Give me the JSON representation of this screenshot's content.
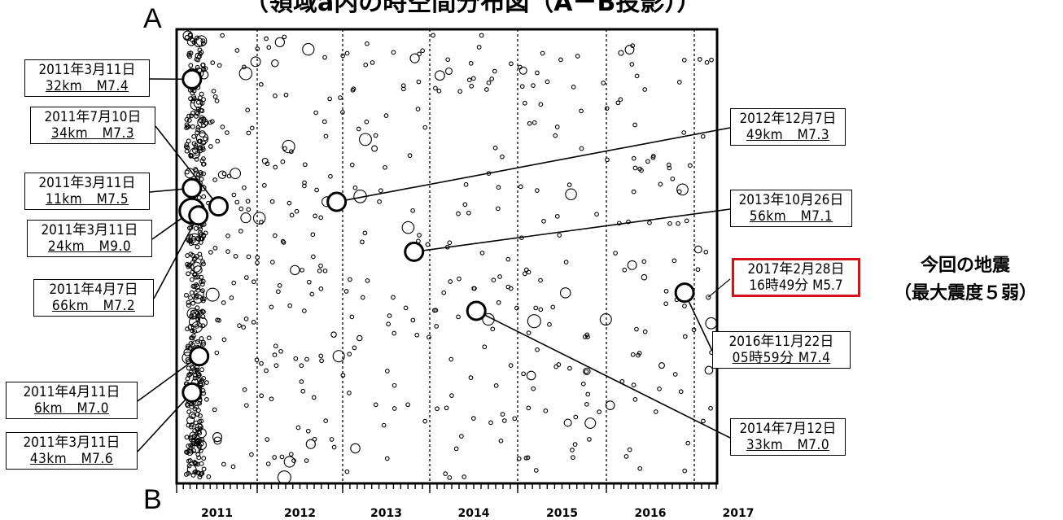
{
  "title": "（領域a内の時空間分布図（A－B投影））",
  "axis_end_top": "A",
  "axis_end_bottom": "B",
  "current_quake": {
    "heading_line1": "今回の地震",
    "heading_line2": "（最大震度５弱）",
    "label_line1": "2017年2月28日",
    "label_line2": "16時49分 M5.7"
  },
  "colors": {
    "highlight_border": "#d8101a",
    "ink": "#000000",
    "background": "#ffffff"
  },
  "chart_data": {
    "type": "scatter",
    "title": "",
    "xlabel": "",
    "ylabel": "",
    "x_ticks": [
      "2011",
      "2012",
      "2013",
      "2014",
      "2015",
      "2016",
      "2017"
    ],
    "xlim": [
      2011.0,
      2017.25
    ],
    "grid": "vertical dashed lines at year boundaries",
    "marker": "open circles sized by magnitude",
    "major_events": [
      {
        "label_line1": "2011年3月11日",
        "label_line2": "32km　M7.4",
        "x": 2011.19,
        "y": 0.11,
        "size": "large"
      },
      {
        "label_line1": "2011年7月10日",
        "label_line2": "34km　M7.3",
        "x": 2011.52,
        "y": 0.39,
        "size": "large"
      },
      {
        "label_line1": "2011年3月11日",
        "label_line2": "11km　M7.5",
        "x": 2011.19,
        "y": 0.35,
        "size": "large"
      },
      {
        "label_line1": "2011年3月11日",
        "label_line2": "24km　M9.0",
        "x": 2011.19,
        "y": 0.4,
        "size": "huge"
      },
      {
        "label_line1": "2011年4月7日",
        "label_line2": "66km　M7.2",
        "x": 2011.27,
        "y": 0.41,
        "size": "large"
      },
      {
        "label_line1": "2011年4月11日",
        "label_line2": "6km　M7.0",
        "x": 2011.28,
        "y": 0.72,
        "size": "large"
      },
      {
        "label_line1": "2011年3月11日",
        "label_line2": "43km　M7.6",
        "x": 2011.19,
        "y": 0.8,
        "size": "large"
      },
      {
        "label_line1": "2012年12月7日",
        "label_line2": "49km　M7.3",
        "x": 2012.93,
        "y": 0.38,
        "size": "large"
      },
      {
        "label_line1": "2013年10月26日",
        "label_line2": "56km　M7.1",
        "x": 2013.82,
        "y": 0.49,
        "size": "large"
      },
      {
        "label_line1": "2014年7月12日",
        "label_line2": "33km　M7.0",
        "x": 2014.53,
        "y": 0.62,
        "size": "large"
      },
      {
        "label_line1": "2016年11月22日",
        "label_line2": "05時59分 M7.4",
        "x": 2016.89,
        "y": 0.58,
        "size": "large"
      }
    ]
  }
}
